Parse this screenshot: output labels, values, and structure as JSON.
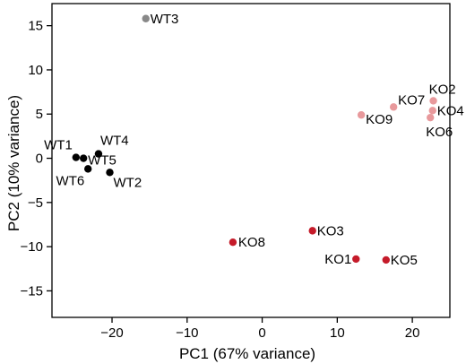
{
  "chart_data": {
    "type": "scatter",
    "xlabel": "PC1 (67% variance)",
    "ylabel": "PC2 (10% variance)",
    "xlim": [
      -28,
      25
    ],
    "ylim": [
      -18,
      17.5
    ],
    "xticks": [
      -20,
      -10,
      0,
      10,
      20
    ],
    "yticks": [
      -15,
      -10,
      -5,
      0,
      5,
      10,
      15
    ],
    "grid": false,
    "legend": "none",
    "groups": [
      {
        "color": "#000000"
      },
      {
        "color": "#888888"
      },
      {
        "color": "#e8999c"
      },
      {
        "color": "#c51b2a"
      }
    ],
    "points": [
      {
        "label": "WT1",
        "x": -24.8,
        "y": 0.1,
        "group": 0,
        "anchor": "end",
        "dx": -4,
        "dy": -9
      },
      {
        "label": "WT4",
        "x": -21.8,
        "y": 0.5,
        "group": 0,
        "anchor": "start",
        "dx": 2,
        "dy": -10
      },
      {
        "label": "WT5",
        "x": -23.8,
        "y": 0.0,
        "group": 0,
        "anchor": "start",
        "dx": 5,
        "dy": 7
      },
      {
        "label": "WT6",
        "x": -23.2,
        "y": -1.2,
        "group": 0,
        "anchor": "end",
        "dx": -4,
        "dy": 18
      },
      {
        "label": "WT2",
        "x": -20.3,
        "y": -1.6,
        "group": 0,
        "anchor": "start",
        "dx": 4,
        "dy": 16
      },
      {
        "label": "WT3",
        "x": -15.5,
        "y": 15.8,
        "group": 1,
        "anchor": "start",
        "dx": 5,
        "dy": 5
      },
      {
        "label": "KO7",
        "x": 17.5,
        "y": 5.8,
        "group": 2,
        "anchor": "start",
        "dx": 5,
        "dy": -3
      },
      {
        "label": "KO2",
        "x": 22.8,
        "y": 6.5,
        "group": 2,
        "anchor": "start",
        "dx": -5,
        "dy": -8
      },
      {
        "label": "KO4",
        "x": 22.7,
        "y": 5.4,
        "group": 2,
        "anchor": "start",
        "dx": 5,
        "dy": 5
      },
      {
        "label": "KO6",
        "x": 22.4,
        "y": 4.6,
        "group": 2,
        "anchor": "start",
        "dx": -5,
        "dy": 21
      },
      {
        "label": "KO9",
        "x": 13.2,
        "y": 4.9,
        "group": 2,
        "anchor": "start",
        "dx": 5,
        "dy": 10
      },
      {
        "label": "KO3",
        "x": 6.7,
        "y": -8.2,
        "group": 3,
        "anchor": "start",
        "dx": 5,
        "dy": 5
      },
      {
        "label": "KO8",
        "x": -3.9,
        "y": -9.5,
        "group": 3,
        "anchor": "start",
        "dx": 6,
        "dy": 5
      },
      {
        "label": "KO1",
        "x": 12.5,
        "y": -11.4,
        "group": 3,
        "anchor": "end",
        "dx": -5,
        "dy": 5
      },
      {
        "label": "KO5",
        "x": 16.5,
        "y": -11.5,
        "group": 3,
        "anchor": "start",
        "dx": 5,
        "dy": 5
      }
    ]
  }
}
